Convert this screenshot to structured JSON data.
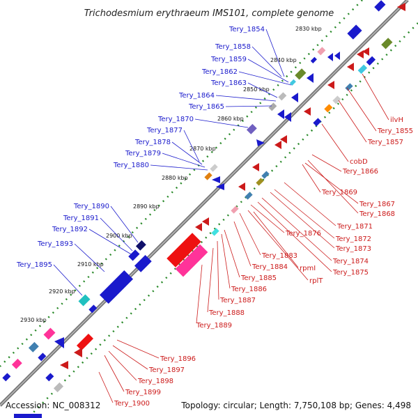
{
  "title": "Trichodesmium erythraeum IMS101, complete genome",
  "footer": {
    "accession": "Accession: NC_008312",
    "summary": "Topology: circular; Length: 7,750,108 bp; Genes: 4,498"
  },
  "kbp_ticks": [
    "2830 kbp",
    "2840 kbp",
    "2850 kbp",
    "2860 kbp",
    "2870 kbp",
    "2880 kbp",
    "2890 kbp",
    "2900 kbp",
    "2910 kbp",
    "2920 kbp",
    "2930 kbp"
  ],
  "forward_genes": [
    "Tery_1854",
    "Tery_1858",
    "Tery_1859",
    "Tery_1862",
    "Tery_1863",
    "Tery_1864",
    "Tery_1865",
    "Tery_1870",
    "Tery_1877",
    "Tery_1878",
    "Tery_1879",
    "Tery_1880",
    "Tery_1890",
    "Tery_1891",
    "Tery_1892",
    "Tery_1893",
    "Tery_1895"
  ],
  "reverse_genes": [
    "ilvH",
    "Tery_1855",
    "Tery_1857",
    "cobD",
    "Tery_1866",
    "Tery_1869",
    "Tery_1867",
    "Tery_1868",
    "Tery_1871",
    "Tery_1872",
    "Tery_1873",
    "Tery_1874",
    "Tery_1875",
    "Tery_1876",
    "Tery_1883",
    "Tery_1884",
    "rpmI",
    "rplT",
    "Tery_1885",
    "Tery_1886",
    "Tery_1887",
    "Tery_1888",
    "Tery_1889",
    "Tery_1896",
    "Tery_1897",
    "Tery_1898",
    "Tery_1899",
    "Tery_1900"
  ],
  "colors": {
    "forward": "#1a1acc",
    "reverse": "#cc1a1a",
    "backbone": "#777777",
    "tick": "#2a8a2a"
  }
}
